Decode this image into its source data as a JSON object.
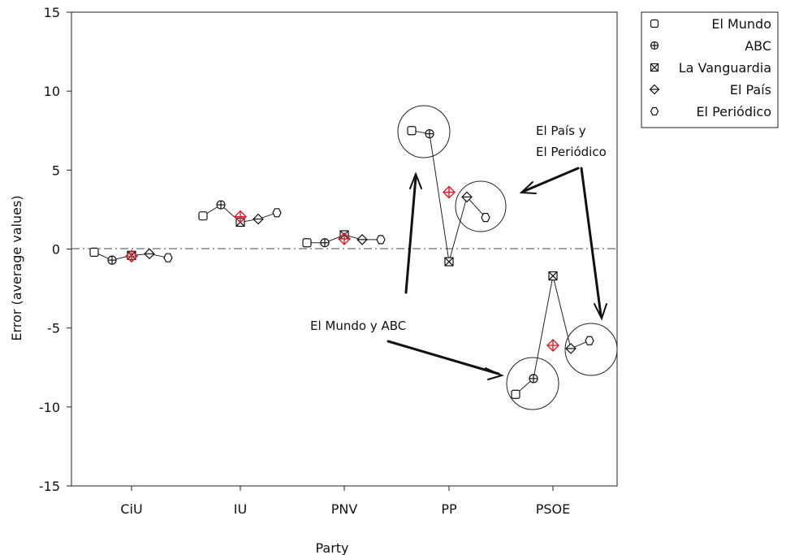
{
  "chart_data": {
    "type": "scatter",
    "title": "",
    "xlabel": "Party",
    "ylabel": "Error (average values)",
    "ylim": [
      -15,
      15
    ],
    "yticks": [
      15,
      10,
      5,
      0,
      -5,
      -10,
      -15
    ],
    "ytick_labels": [
      "15",
      "10",
      "5",
      "0",
      "-5",
      "-10",
      "-15"
    ],
    "categories": [
      "CiU",
      "IU",
      "PNV",
      "PP",
      "PSOE"
    ],
    "reference_line": 0,
    "grid": false,
    "legend_position": "outside-top-right",
    "series": [
      {
        "name": "El Mundo",
        "symbol": "square",
        "values": [
          -0.2,
          2.1,
          0.4,
          7.5,
          -9.2
        ]
      },
      {
        "name": "ABC",
        "symbol": "plus",
        "values": [
          -0.7,
          2.8,
          0.4,
          7.3,
          -8.2
        ]
      },
      {
        "name": "La Vanguardia",
        "symbol": "x",
        "values": [
          -0.4,
          1.7,
          0.9,
          -0.8,
          -1.7
        ]
      },
      {
        "name": "El País",
        "symbol": "diamond",
        "values": [
          -0.3,
          1.9,
          0.6,
          3.3,
          -6.3
        ]
      },
      {
        "name": "El Periódico",
        "symbol": "circle",
        "values": [
          -0.55,
          2.3,
          0.6,
          2.0,
          -5.8
        ]
      }
    ],
    "average": {
      "color": "#d8202a",
      "values": [
        -0.45,
        2.05,
        0.65,
        3.6,
        -6.1
      ]
    },
    "annotations": [
      {
        "text": "El Mundo y ABC",
        "target": "El Mundo and ABC"
      },
      {
        "text": "El País  y",
        "target": "El País and El Periódico"
      },
      {
        "text": "El Periódico",
        "target": "El País and El Periódico"
      }
    ]
  },
  "colors": {
    "line": "#222222",
    "average": "#d8202a"
  }
}
